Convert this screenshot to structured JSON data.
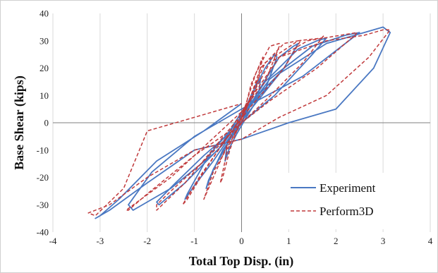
{
  "chart_data": {
    "type": "line",
    "title": "",
    "xlabel": "Total Top Disp. (in)",
    "ylabel": "Base Shear (kips)",
    "xlim": [
      -4,
      4
    ],
    "ylim": [
      -40,
      40
    ],
    "xticks": [
      -4,
      -3,
      -2,
      -1,
      0,
      1,
      2,
      3,
      4
    ],
    "yticks": [
      -40,
      -30,
      -20,
      -10,
      0,
      10,
      20,
      30,
      40
    ],
    "x_tick_labels": [
      "-4",
      "-3",
      "-2",
      "-1",
      "0",
      "1",
      "2",
      "3",
      "4"
    ],
    "y_tick_labels": [
      "-40",
      "-30",
      "-20",
      "-10",
      "0",
      "10",
      "20",
      "30",
      "40"
    ],
    "grid": "vertical",
    "legend_position": "bottom-right",
    "colors": {
      "experiment": "#4a78c2",
      "perform3d": "#c0393b",
      "grid": "#d9d9d9"
    },
    "series": [
      {
        "name": "Experiment",
        "style": "solid",
        "color": "#4a78c2",
        "x": [
          0,
          0.2,
          0.3,
          0.4,
          0.35,
          0.1,
          -0.1,
          -0.25,
          -0.35,
          -0.3,
          -0.1,
          0,
          0.2,
          0.5,
          0.7,
          0.75,
          0.5,
          0,
          -0.3,
          -0.6,
          -0.75,
          -0.7,
          -0.4,
          0,
          0.3,
          0.8,
          1.1,
          1.2,
          0.9,
          0.2,
          -0.2,
          -0.6,
          -1.0,
          -1.2,
          -1.15,
          -0.7,
          0,
          0.5,
          1.2,
          1.6,
          1.8,
          1.5,
          0.7,
          0,
          -0.8,
          -1.4,
          -1.8,
          -1.75,
          -1.2,
          -0.4,
          0,
          0.6,
          1.5,
          2.2,
          2.5,
          2.2,
          1.3,
          0,
          -1.0,
          -1.9,
          -2.4,
          -2.3,
          -1.5,
          -0.5,
          0,
          0.8,
          1.8,
          2.6,
          3.0,
          3.15,
          2.8,
          2.0,
          1.0,
          0,
          -1.0,
          -2.0,
          -2.8,
          -3.1,
          -3.0,
          -2.6,
          -1.8,
          -0.8,
          0
        ],
        "y": [
          0,
          8,
          14,
          16,
          9,
          2,
          -4,
          -9,
          -14,
          -7,
          -2,
          2,
          10,
          20,
          25,
          24,
          12,
          3,
          -8,
          -17,
          -24,
          -21,
          -10,
          0,
          10,
          24,
          28,
          29,
          20,
          5,
          -4,
          -14,
          -23,
          -28,
          -26,
          -12,
          2,
          15,
          27,
          30,
          31,
          25,
          10,
          0,
          -12,
          -22,
          -29,
          -30,
          -22,
          -8,
          2,
          16,
          28,
          32,
          33,
          29,
          17,
          5,
          -5,
          -18,
          -30,
          -32,
          -24,
          -10,
          4,
          18,
          29,
          33,
          35,
          33,
          20,
          5,
          0,
          -6,
          -10,
          -22,
          -32,
          -35,
          -34,
          -28,
          -14,
          -3,
          7
        ]
      },
      {
        "name": "Perform3D",
        "style": "dashed",
        "color": "#c0393b",
        "x": [
          0,
          0.2,
          0.4,
          0.45,
          0.3,
          0,
          -0.25,
          -0.4,
          -0.45,
          -0.3,
          0,
          0.3,
          0.6,
          0.8,
          0.8,
          0.5,
          0,
          -0.4,
          -0.7,
          -0.8,
          -0.6,
          0,
          0.4,
          0.9,
          1.2,
          1.25,
          0.9,
          0.2,
          -0.3,
          -0.8,
          -1.15,
          -1.25,
          -0.9,
          0,
          0.5,
          1.2,
          1.7,
          1.75,
          1.3,
          0.5,
          0,
          -0.8,
          -1.5,
          -1.8,
          -1.8,
          -1.2,
          0,
          0.6,
          1.4,
          2.1,
          2.45,
          2.4,
          1.6,
          0.6,
          0,
          -1.0,
          -2.0,
          -2.4,
          -2.45,
          -1.5,
          0,
          0.8,
          1.8,
          2.6,
          3.0,
          3.15,
          2.7,
          1.8,
          0.8,
          0,
          -1.0,
          -2.0,
          -2.8,
          -3.25,
          -3.1,
          -2.5,
          -2.0,
          -1.0,
          0
        ],
        "y": [
          0,
          14,
          22,
          24,
          12,
          2,
          -10,
          -20,
          -22,
          -10,
          2,
          18,
          28,
          29,
          28,
          15,
          4,
          -12,
          -24,
          -28,
          -18,
          0,
          20,
          29,
          30,
          30,
          20,
          6,
          -5,
          -18,
          -28,
          -30,
          -20,
          2,
          22,
          30,
          31,
          32,
          22,
          8,
          0,
          -14,
          -25,
          -30,
          -32,
          -22,
          3,
          22,
          30,
          32,
          33,
          32,
          20,
          8,
          0,
          -12,
          -26,
          -32,
          -32,
          -20,
          4,
          24,
          30,
          32,
          34,
          34,
          24,
          10,
          2,
          -6,
          -10,
          -20,
          -30,
          -33,
          -34,
          -24,
          -3,
          2,
          7
        ]
      }
    ]
  }
}
